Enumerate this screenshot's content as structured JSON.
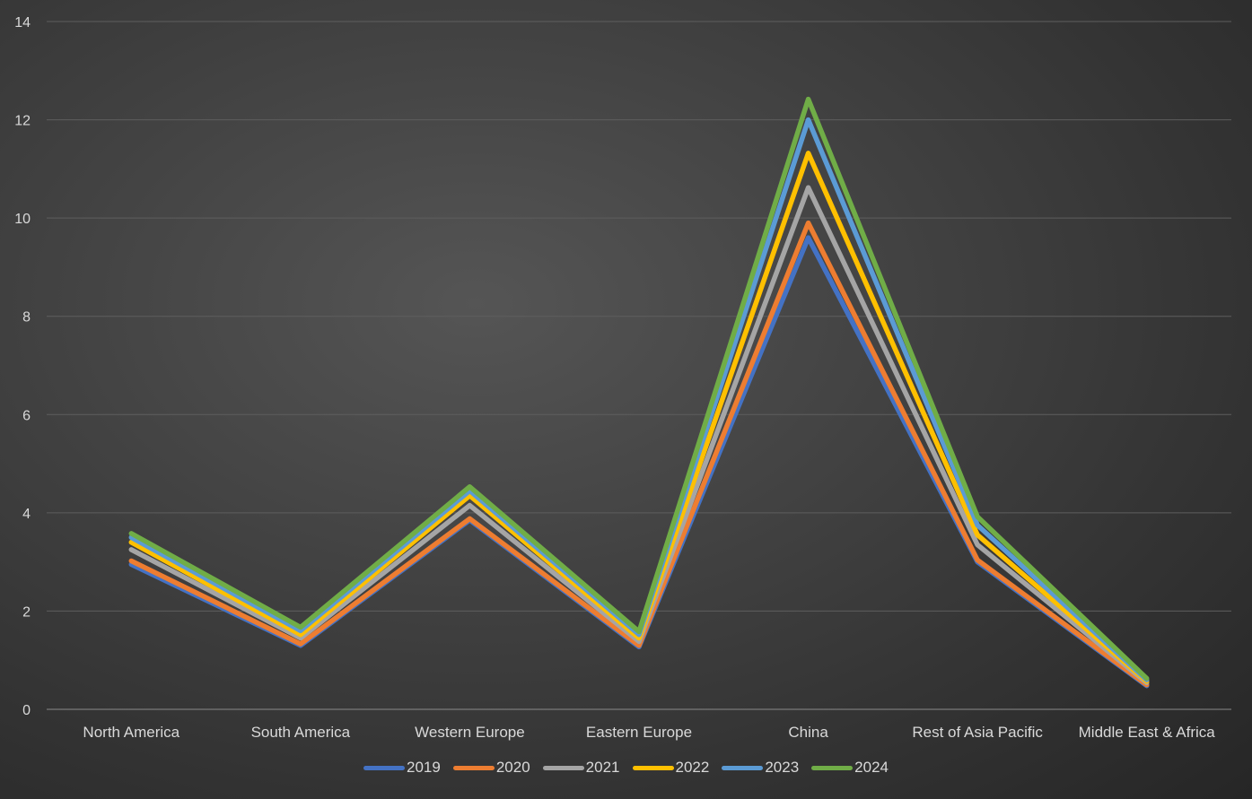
{
  "chart_data": {
    "type": "line",
    "title": "",
    "xlabel": "",
    "ylabel": "",
    "categories": [
      "North America",
      "South America",
      "Western Europe",
      "Eastern Europe",
      "China",
      "Rest of Asia Pacific",
      "Middle East & Africa"
    ],
    "ylim": [
      0,
      14
    ],
    "yticks": [
      "0",
      "2",
      "4",
      "6",
      "8",
      "10",
      "12",
      "14"
    ],
    "grid": true,
    "legend_position": "bottom",
    "series": [
      {
        "name": "2019",
        "color": "#4472c4",
        "values": [
          2.95,
          1.3,
          3.85,
          1.27,
          9.6,
          3.0,
          0.48
        ]
      },
      {
        "name": "2020",
        "color": "#ed7d31",
        "values": [
          3.02,
          1.33,
          3.88,
          1.3,
          9.9,
          3.04,
          0.5
        ]
      },
      {
        "name": "2021",
        "color": "#a5a5a5",
        "values": [
          3.25,
          1.45,
          4.15,
          1.38,
          10.62,
          3.35,
          0.54
        ]
      },
      {
        "name": "2022",
        "color": "#ffc000",
        "values": [
          3.4,
          1.52,
          4.35,
          1.45,
          11.32,
          3.55,
          0.57
        ]
      },
      {
        "name": "2023",
        "color": "#5b9bd5",
        "values": [
          3.5,
          1.6,
          4.45,
          1.52,
          12.0,
          3.75,
          0.6
        ]
      },
      {
        "name": "2024",
        "color": "#70ad47",
        "values": [
          3.58,
          1.67,
          4.53,
          1.58,
          12.42,
          3.92,
          0.63
        ]
      }
    ]
  }
}
